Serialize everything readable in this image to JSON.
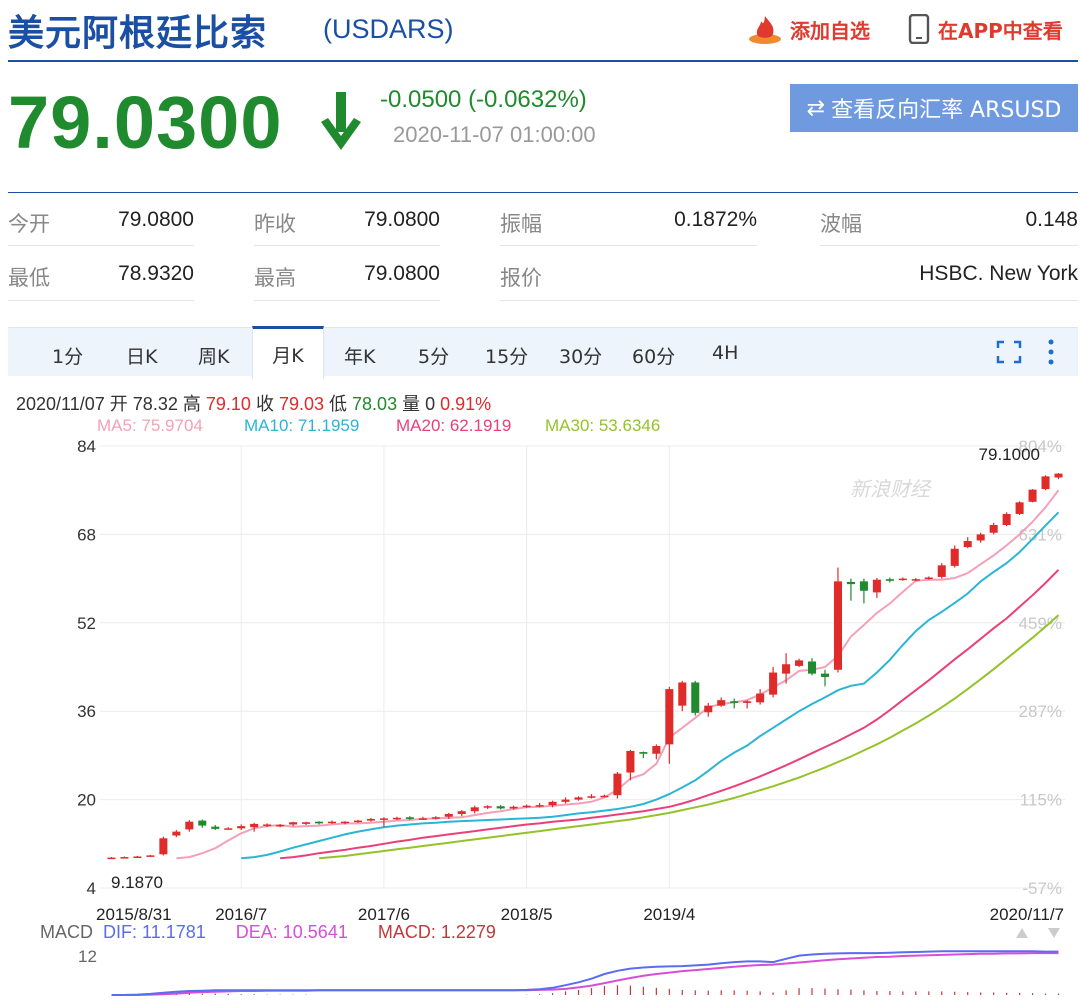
{
  "header": {
    "title": "美元阿根廷比索",
    "code": "(USDARS)",
    "add_label": "添加自选",
    "app_label": "在APP中查看"
  },
  "quote": {
    "price": "79.0300",
    "change": "-0.0500 (-0.0632%)",
    "time": "2020-11-07 01:00:00",
    "reverse_label": "查看反向汇率 ARSUSD"
  },
  "stats": {
    "open_label": "今开",
    "open": "79.0800",
    "prev_label": "昨收",
    "prev": "79.0800",
    "amp_label": "振幅",
    "amp": "0.1872%",
    "wave_label": "波幅",
    "wave": "0.148",
    "low_label": "最低",
    "low": "78.9320",
    "high_label": "最高",
    "high": "79.0800",
    "quote_label": "报价",
    "quote_src": "HSBC. New York"
  },
  "tabs": [
    "1分",
    "日K",
    "周K",
    "月K",
    "年K",
    "5分",
    "15分",
    "30分",
    "60分",
    "4H"
  ],
  "active_tab": "月K",
  "info": {
    "date": "2020/11/07",
    "open_label": "开",
    "open": "78.32",
    "high_label": "高",
    "high": "79.10",
    "close_label": "收",
    "close": "79.03",
    "low_label": "低",
    "low": "78.03",
    "vol_label": "量",
    "vol": "0",
    "pct": "0.91%"
  },
  "ma": {
    "ma5": "MA5: 75.9704",
    "ma10": "MA10: 71.1959",
    "ma20": "MA20: 62.1919",
    "ma30": "MA30: 53.6346"
  },
  "macd": {
    "label": "MACD",
    "dif": "DIF: 11.1781",
    "dea": "DEA: 10.5641",
    "macd": "MACD: 1.2279",
    "ytick": "12"
  },
  "watermark": "新浪财经",
  "colors": {
    "up": "#e02b2b",
    "down": "#1f8a2e",
    "ma5": "#f4a0b8",
    "ma10": "#2bb5d5",
    "ma20": "#e8417a",
    "ma30": "#95c22a",
    "dif": "#5a6cf0",
    "dea": "#d64fd6"
  },
  "chart_data": {
    "type": "candlestick",
    "yticks": [
      "84",
      "68",
      "52",
      "36",
      "20",
      "4"
    ],
    "ylim": [
      4,
      84
    ],
    "pct_ticks": [
      "804%",
      "631%",
      "459%",
      "287%",
      "115%",
      "-57%"
    ],
    "xticks": [
      "2015/8/31",
      "2016/7",
      "2017/6",
      "2018/5",
      "2019/4",
      "2020/11/7"
    ],
    "max_label": "79.1000",
    "min_label": "9.1870",
    "candles": [
      [
        9.4,
        9.5,
        9.3,
        9.6
      ],
      [
        9.5,
        9.6,
        9.4,
        9.7
      ],
      [
        9.6,
        9.7,
        9.5,
        9.8
      ],
      [
        9.8,
        9.9,
        9.7,
        10.0
      ],
      [
        10.1,
        13.0,
        9.9,
        13.3
      ],
      [
        13.5,
        14.2,
        13.2,
        14.5
      ],
      [
        14.6,
        16.0,
        14.2,
        16.3
      ],
      [
        16.2,
        15.3,
        14.9,
        16.4
      ],
      [
        15.1,
        14.7,
        14.5,
        15.4
      ],
      [
        14.7,
        14.8,
        14.6,
        15.0
      ],
      [
        14.8,
        15.2,
        14.5,
        15.5
      ],
      [
        15.0,
        15.6,
        14.2,
        15.8
      ],
      [
        15.3,
        15.5,
        15.0,
        15.7
      ],
      [
        15.2,
        15.4,
        15.0,
        15.6
      ],
      [
        15.5,
        15.9,
        15.2,
        16.0
      ],
      [
        15.6,
        15.9,
        15.4,
        16.0
      ],
      [
        16.0,
        15.7,
        15.5,
        16.1
      ],
      [
        15.8,
        16.0,
        15.6,
        16.2
      ],
      [
        15.8,
        16.0,
        15.5,
        16.1
      ],
      [
        16.0,
        16.2,
        15.8,
        16.3
      ],
      [
        16.2,
        16.5,
        16.0,
        16.7
      ],
      [
        16.5,
        16.6,
        15.0,
        16.8
      ],
      [
        16.5,
        16.7,
        16.3,
        16.9
      ],
      [
        16.8,
        16.5,
        16.3,
        17.0
      ],
      [
        16.5,
        16.6,
        16.4,
        16.9
      ],
      [
        16.6,
        16.8,
        16.4,
        17.0
      ],
      [
        16.9,
        17.4,
        16.5,
        17.6
      ],
      [
        17.4,
        17.9,
        17.0,
        18.1
      ],
      [
        17.9,
        18.6,
        17.5,
        18.9
      ],
      [
        18.6,
        18.8,
        18.3,
        19.0
      ],
      [
        18.8,
        18.4,
        18.2,
        19.0
      ],
      [
        18.4,
        18.7,
        18.2,
        18.9
      ],
      [
        18.7,
        18.9,
        18.5,
        19.1
      ],
      [
        18.9,
        19.0,
        18.6,
        19.4
      ],
      [
        19.0,
        19.6,
        18.6,
        19.8
      ],
      [
        19.6,
        20.0,
        19.3,
        20.4
      ],
      [
        20.0,
        20.4,
        19.8,
        20.6
      ],
      [
        20.4,
        20.6,
        20.2,
        21.0
      ],
      [
        20.5,
        20.7,
        20.4,
        20.9
      ],
      [
        20.8,
        24.7,
        20.2,
        25.0
      ],
      [
        24.9,
        28.8,
        23.5,
        29.0
      ],
      [
        28.6,
        28.3,
        27.5,
        28.7
      ],
      [
        28.3,
        29.7,
        27.3,
        30.0
      ],
      [
        30.0,
        40.0,
        26.5,
        40.4
      ],
      [
        37.0,
        41.2,
        36.0,
        41.5
      ],
      [
        41.2,
        35.7,
        35.2,
        41.5
      ],
      [
        35.8,
        37.0,
        35.0,
        37.5
      ],
      [
        37.0,
        38.0,
        36.8,
        38.5
      ],
      [
        37.8,
        37.5,
        36.5,
        38.3
      ],
      [
        37.5,
        37.8,
        36.5,
        38.0
      ],
      [
        37.6,
        39.2,
        37.2,
        40.0
      ],
      [
        39.0,
        43.0,
        38.5,
        44.0
      ],
      [
        42.8,
        44.5,
        41.0,
        46.5
      ],
      [
        44.2,
        45.2,
        44.0,
        45.5
      ],
      [
        45.0,
        42.8,
        42.5,
        45.6
      ],
      [
        42.8,
        42.2,
        40.5,
        43.5
      ],
      [
        43.5,
        59.5,
        43.0,
        62.0
      ],
      [
        59.4,
        59.0,
        56.0,
        60.0
      ],
      [
        59.5,
        57.8,
        55.5,
        60.0
      ],
      [
        57.5,
        59.8,
        56.5,
        60.1
      ],
      [
        59.9,
        59.6,
        59.3,
        60.2
      ],
      [
        59.8,
        60.0,
        59.6,
        60.2
      ],
      [
        59.9,
        59.9,
        59.5,
        60.1
      ],
      [
        60.0,
        60.2,
        59.8,
        60.4
      ],
      [
        60.3,
        62.4,
        60.0,
        62.8
      ],
      [
        62.3,
        65.4,
        62.0,
        66.0
      ],
      [
        65.7,
        66.8,
        65.5,
        67.5
      ],
      [
        66.9,
        68.0,
        66.5,
        68.3
      ],
      [
        68.3,
        69.7,
        68.0,
        70.1
      ],
      [
        69.7,
        71.7,
        69.5,
        72.0
      ],
      [
        71.7,
        73.8,
        71.5,
        74.0
      ],
      [
        73.9,
        76.1,
        73.8,
        76.2
      ],
      [
        76.2,
        78.5,
        76.0,
        78.7
      ],
      [
        78.3,
        79.0,
        78.0,
        79.1
      ]
    ],
    "ma5": [
      9.4,
      9.6,
      10.3,
      11.2,
      12.6,
      13.9,
      14.8,
      15.2,
      15.4,
      15.1,
      15.2,
      15.3,
      15.5,
      15.7,
      15.7,
      15.8,
      16.0,
      16.2,
      16.3,
      16.5,
      16.6,
      16.7,
      16.8,
      17.2,
      17.6,
      17.9,
      18.3,
      18.6,
      18.7,
      18.9,
      19.1,
      19.3,
      19.6,
      20.4,
      21.8,
      23.8,
      24.6,
      26.5,
      31.2,
      33.0,
      34.8,
      36.7,
      37.3,
      37.6,
      38.0,
      39.0,
      40.3,
      41.6,
      43.3,
      43.5,
      44.0,
      46.0,
      49.5,
      51.6,
      53.8,
      55.5,
      57.6,
      59.6,
      59.8,
      59.8,
      60.1,
      61.0,
      62.6,
      64.2,
      66.0,
      68.0,
      70.3,
      72.9,
      76.0
    ],
    "ma10": [
      9.4,
      9.6,
      10.0,
      10.6,
      11.3,
      11.9,
      12.5,
      13.1,
      13.7,
      14.2,
      14.6,
      15.0,
      15.3,
      15.5,
      15.7,
      15.8,
      16.0,
      16.1,
      16.2,
      16.3,
      16.4,
      16.5,
      16.6,
      16.7,
      16.9,
      17.2,
      17.5,
      17.7,
      18.0,
      18.3,
      18.7,
      19.2,
      20.0,
      21.0,
      22.2,
      23.5,
      25.2,
      27.0,
      28.5,
      29.8,
      31.5,
      33.0,
      34.5,
      36.0,
      37.3,
      38.5,
      39.8,
      40.6,
      41.0,
      43.0,
      45.3,
      48.0,
      50.5,
      52.5,
      54.0,
      55.6,
      57.3,
      59.5,
      61.2,
      62.8,
      64.8,
      67.2,
      69.6,
      72.0
    ],
    "ma20": [
      9.4,
      9.6,
      9.9,
      10.3,
      10.6,
      10.9,
      11.3,
      11.6,
      12.0,
      12.4,
      12.7,
      13.1,
      13.4,
      13.7,
      14.0,
      14.3,
      14.6,
      14.9,
      15.2,
      15.5,
      15.7,
      16.0,
      16.2,
      16.4,
      16.7,
      17.0,
      17.3,
      17.6,
      17.9,
      18.3,
      18.7,
      19.3,
      20.0,
      20.8,
      21.6,
      22.4,
      23.3,
      24.2,
      25.2,
      26.2,
      27.3,
      28.4,
      29.5,
      30.6,
      31.8,
      33.0,
      34.5,
      36.2,
      38.0,
      39.8,
      41.6,
      43.5,
      45.4,
      47.2,
      49.1,
      51.0,
      52.8,
      54.9,
      57.0,
      59.2,
      61.6
    ],
    "ma30": [
      9.4,
      9.6,
      9.8,
      10.1,
      10.4,
      10.7,
      11.0,
      11.3,
      11.6,
      11.9,
      12.2,
      12.5,
      12.8,
      13.1,
      13.4,
      13.7,
      14.0,
      14.3,
      14.6,
      14.9,
      15.2,
      15.5,
      15.8,
      16.1,
      16.4,
      16.8,
      17.2,
      17.6,
      18.1,
      18.6,
      19.1,
      19.7,
      20.3,
      21.0,
      21.7,
      22.4,
      23.2,
      24.0,
      24.9,
      25.8,
      26.8,
      27.8,
      28.9,
      30.0,
      31.2,
      32.5,
      33.8,
      35.2,
      36.7,
      38.3,
      40.0,
      41.8,
      43.6,
      45.5,
      47.4,
      49.3,
      51.3,
      53.4
    ],
    "macd_dif": [
      0,
      0,
      0.1,
      0.3,
      0.6,
      0.9,
      1.1,
      1.2,
      1.3,
      1.3,
      1.3,
      1.3,
      1.3,
      1.3,
      1.3,
      1.3,
      1.3,
      1.3,
      1.3,
      1.3,
      1.3,
      1.3,
      1.3,
      1.3,
      1.3,
      1.3,
      1.3,
      1.3,
      1.3,
      1.3,
      1.3,
      1.3,
      1.4,
      1.6,
      2.0,
      2.7,
      3.5,
      4.5,
      5.8,
      6.7,
      7.3,
      7.6,
      7.8,
      7.9,
      8.0,
      8.2,
      8.4,
      8.8,
      9.1,
      9.3,
      9.3,
      9.1,
      10.0,
      10.9,
      11.2,
      11.4,
      11.5,
      11.6,
      11.6,
      11.6,
      11.7,
      11.8,
      11.9,
      12.0,
      12.1,
      12.1,
      12.1,
      12.1,
      12.1,
      12.1,
      12.1,
      12.1,
      12.0,
      12.0
    ],
    "macd_dea": [
      0,
      0,
      0,
      0.1,
      0.2,
      0.4,
      0.6,
      0.8,
      0.9,
      1.0,
      1.1,
      1.1,
      1.2,
      1.2,
      1.2,
      1.2,
      1.3,
      1.3,
      1.3,
      1.3,
      1.3,
      1.3,
      1.3,
      1.3,
      1.3,
      1.3,
      1.3,
      1.3,
      1.3,
      1.3,
      1.3,
      1.3,
      1.3,
      1.4,
      1.5,
      1.7,
      2.1,
      2.6,
      3.3,
      4.0,
      4.7,
      5.3,
      5.8,
      6.2,
      6.6,
      6.9,
      7.2,
      7.5,
      7.8,
      8.1,
      8.3,
      8.4,
      8.7,
      9.0,
      9.3,
      9.6,
      9.9,
      10.1,
      10.3,
      10.5,
      10.6,
      10.8,
      10.9,
      11.0,
      11.1,
      11.2,
      11.3,
      11.4,
      11.4,
      11.5,
      11.5,
      11.6,
      11.6,
      11.6
    ],
    "macd_hist": [
      0,
      0,
      0.1,
      0.2,
      0.4,
      0.5,
      0.5,
      0.4,
      0.4,
      0.3,
      0.2,
      0.2,
      0.1,
      0.1,
      0.1,
      0.1,
      0,
      0,
      0,
      0,
      0,
      0,
      0,
      0,
      0,
      0,
      0,
      0,
      0,
      0,
      0,
      0,
      0.1,
      0.2,
      0.5,
      1.0,
      1.4,
      1.9,
      2.5,
      2.7,
      2.6,
      2.3,
      2.0,
      1.7,
      1.4,
      1.3,
      1.2,
      1.3,
      1.3,
      1.2,
      1.0,
      0.7,
      1.3,
      1.9,
      1.9,
      1.8,
      1.6,
      1.5,
      1.3,
      1.1,
      1.1,
      1.0,
      1.0,
      1.0,
      1.0,
      0.9,
      0.8,
      0.7,
      0.7,
      0.6,
      0.6,
      0.5,
      0.4,
      0.4
    ]
  }
}
